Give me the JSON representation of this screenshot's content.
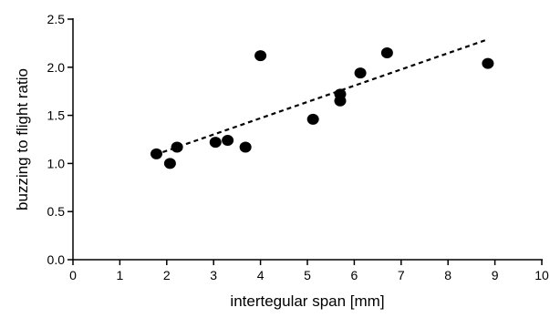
{
  "chart_data": {
    "type": "scatter",
    "title": "",
    "xlabel": "intertegular span [mm]",
    "ylabel": "buzzing to flight ratio",
    "xlim": [
      0,
      10
    ],
    "ylim": [
      0,
      2.5
    ],
    "x_ticks": [
      "0",
      "1",
      "2",
      "3",
      "4",
      "5",
      "6",
      "7",
      "8",
      "9",
      "10"
    ],
    "y_ticks": [
      "0.0",
      "0.5",
      "1.0",
      "1.5",
      "2.0",
      "2.5"
    ],
    "grid": false,
    "legend": "none",
    "series": [
      {
        "marker": "filled-circle",
        "color": "#000000",
        "points": [
          {
            "x": 1.78,
            "y": 1.1
          },
          {
            "x": 2.07,
            "y": 1.0
          },
          {
            "x": 2.22,
            "y": 1.17
          },
          {
            "x": 3.04,
            "y": 1.22
          },
          {
            "x": 3.3,
            "y": 1.24
          },
          {
            "x": 3.68,
            "y": 1.17
          },
          {
            "x": 4.0,
            "y": 2.12
          },
          {
            "x": 5.12,
            "y": 1.46
          },
          {
            "x": 5.7,
            "y": 1.72
          },
          {
            "x": 5.7,
            "y": 1.65
          },
          {
            "x": 6.13,
            "y": 1.94
          },
          {
            "x": 6.7,
            "y": 2.15
          },
          {
            "x": 8.85,
            "y": 2.04
          }
        ]
      }
    ],
    "trendline": {
      "style": "dashed",
      "color": "#000000",
      "x": [
        1.75,
        8.85
      ],
      "y": [
        1.09,
        2.29
      ]
    }
  }
}
